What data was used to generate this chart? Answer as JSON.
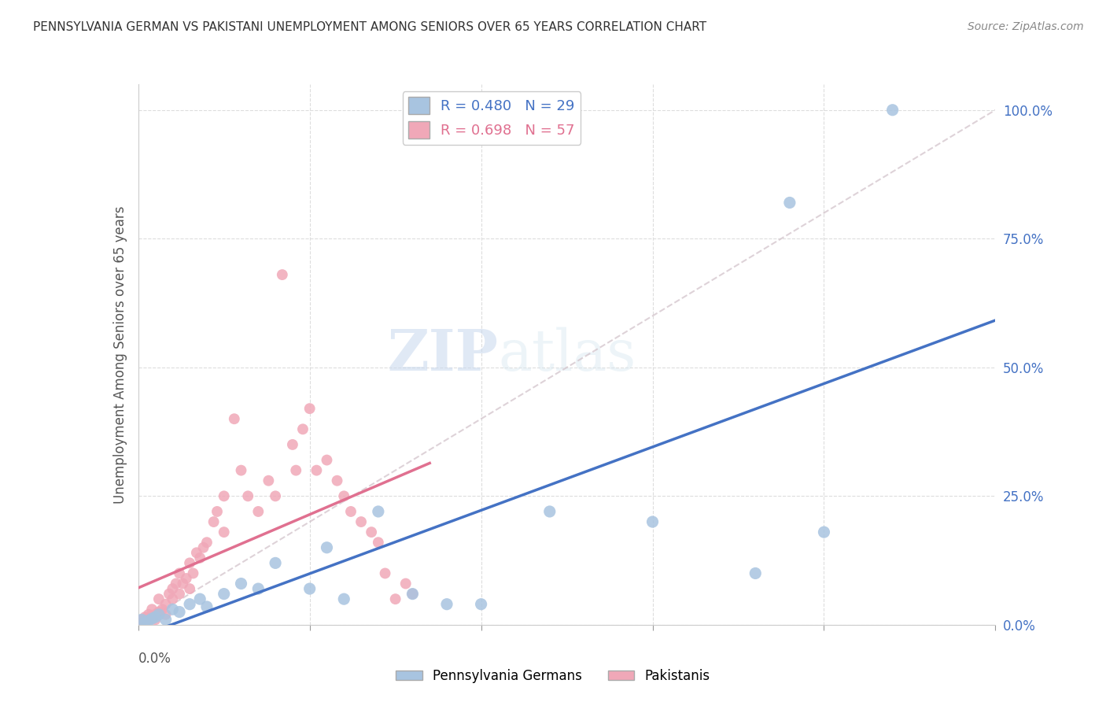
{
  "title": "PENNSYLVANIA GERMAN VS PAKISTANI UNEMPLOYMENT AMONG SENIORS OVER 65 YEARS CORRELATION CHART",
  "source": "Source: ZipAtlas.com",
  "ylabel": "Unemployment Among Seniors over 65 years",
  "right_yticks": [
    "0.0%",
    "25.0%",
    "50.0%",
    "75.0%",
    "100.0%"
  ],
  "right_ytick_vals": [
    0.0,
    0.25,
    0.5,
    0.75,
    1.0
  ],
  "blue_R": 0.48,
  "blue_N": 29,
  "pink_R": 0.698,
  "pink_N": 57,
  "blue_color": "#a8c4e0",
  "pink_color": "#f0a8b8",
  "blue_line_color": "#4472c4",
  "pink_line_color": "#e07090",
  "diagonal_color": "#d0c0c8",
  "watermark_zip": "ZIP",
  "watermark_atlas": "atlas",
  "blue_points": [
    [
      0.001,
      0.01
    ],
    [
      0.002,
      0.005
    ],
    [
      0.003,
      0.008
    ],
    [
      0.004,
      0.012
    ],
    [
      0.005,
      0.015
    ],
    [
      0.006,
      0.02
    ],
    [
      0.008,
      0.01
    ],
    [
      0.01,
      0.03
    ],
    [
      0.012,
      0.025
    ],
    [
      0.015,
      0.04
    ],
    [
      0.018,
      0.05
    ],
    [
      0.02,
      0.035
    ],
    [
      0.025,
      0.06
    ],
    [
      0.03,
      0.08
    ],
    [
      0.035,
      0.07
    ],
    [
      0.04,
      0.12
    ],
    [
      0.05,
      0.07
    ],
    [
      0.055,
      0.15
    ],
    [
      0.06,
      0.05
    ],
    [
      0.07,
      0.22
    ],
    [
      0.08,
      0.06
    ],
    [
      0.09,
      0.04
    ],
    [
      0.1,
      0.04
    ],
    [
      0.12,
      0.22
    ],
    [
      0.15,
      0.2
    ],
    [
      0.18,
      0.1
    ],
    [
      0.2,
      0.18
    ],
    [
      0.22,
      1.0
    ],
    [
      0.19,
      0.82
    ]
  ],
  "pink_points": [
    [
      0.001,
      0.005
    ],
    [
      0.001,
      0.01
    ],
    [
      0.002,
      0.008
    ],
    [
      0.002,
      0.015
    ],
    [
      0.003,
      0.01
    ],
    [
      0.003,
      0.02
    ],
    [
      0.004,
      0.015
    ],
    [
      0.004,
      0.03
    ],
    [
      0.005,
      0.02
    ],
    [
      0.005,
      0.01
    ],
    [
      0.006,
      0.025
    ],
    [
      0.006,
      0.05
    ],
    [
      0.007,
      0.03
    ],
    [
      0.008,
      0.04
    ],
    [
      0.008,
      0.02
    ],
    [
      0.009,
      0.06
    ],
    [
      0.01,
      0.05
    ],
    [
      0.01,
      0.07
    ],
    [
      0.011,
      0.08
    ],
    [
      0.012,
      0.06
    ],
    [
      0.012,
      0.1
    ],
    [
      0.013,
      0.08
    ],
    [
      0.014,
      0.09
    ],
    [
      0.015,
      0.12
    ],
    [
      0.015,
      0.07
    ],
    [
      0.016,
      0.1
    ],
    [
      0.017,
      0.14
    ],
    [
      0.018,
      0.13
    ],
    [
      0.019,
      0.15
    ],
    [
      0.02,
      0.16
    ],
    [
      0.022,
      0.2
    ],
    [
      0.023,
      0.22
    ],
    [
      0.025,
      0.25
    ],
    [
      0.025,
      0.18
    ],
    [
      0.028,
      0.4
    ],
    [
      0.03,
      0.3
    ],
    [
      0.032,
      0.25
    ],
    [
      0.035,
      0.22
    ],
    [
      0.038,
      0.28
    ],
    [
      0.04,
      0.25
    ],
    [
      0.042,
      0.68
    ],
    [
      0.045,
      0.35
    ],
    [
      0.046,
      0.3
    ],
    [
      0.048,
      0.38
    ],
    [
      0.05,
      0.42
    ],
    [
      0.052,
      0.3
    ],
    [
      0.055,
      0.32
    ],
    [
      0.058,
      0.28
    ],
    [
      0.06,
      0.25
    ],
    [
      0.062,
      0.22
    ],
    [
      0.065,
      0.2
    ],
    [
      0.068,
      0.18
    ],
    [
      0.07,
      0.16
    ],
    [
      0.072,
      0.1
    ],
    [
      0.075,
      0.05
    ],
    [
      0.078,
      0.08
    ],
    [
      0.08,
      0.06
    ]
  ],
  "blue_line_x": [
    0.0,
    0.25
  ],
  "pink_line_x": [
    0.0,
    0.085
  ],
  "xlim": [
    0.0,
    0.25
  ],
  "ylim": [
    0.0,
    1.05
  ],
  "legend_blue_label": "Pennsylvania Germans",
  "legend_pink_label": "Pakistanis"
}
